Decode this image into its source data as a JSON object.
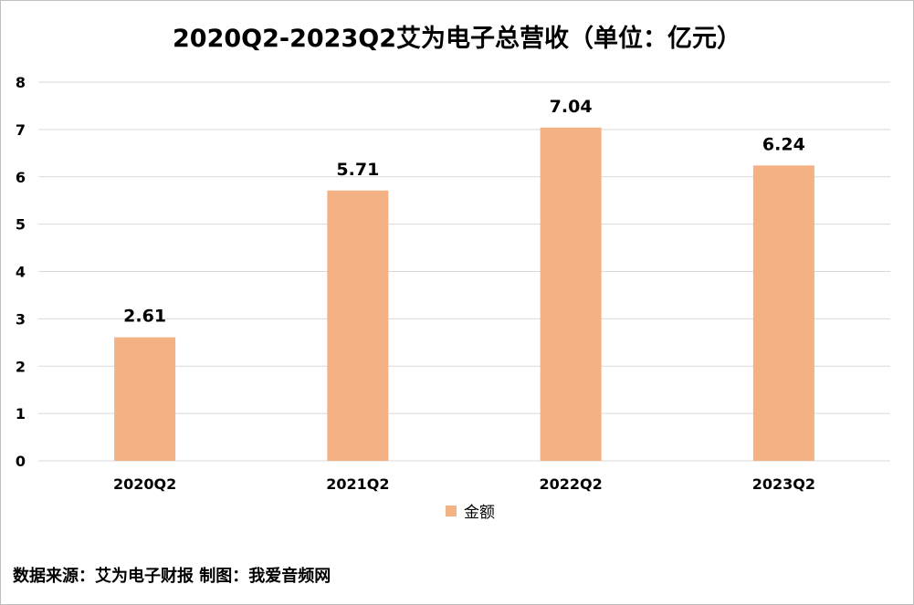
{
  "chart_data": {
    "type": "bar",
    "title": "2020Q2-2023Q2艾为电子总营收（单位：亿元）",
    "categories": [
      "2020Q2",
      "2021Q2",
      "2022Q2",
      "2023Q2"
    ],
    "series": [
      {
        "name": "金额",
        "values": [
          2.61,
          5.71,
          7.04,
          6.24
        ]
      }
    ],
    "ylim": [
      0,
      8
    ],
    "yticks": [
      0,
      1,
      2,
      3,
      4,
      5,
      6,
      7,
      8
    ],
    "grid": true,
    "legend": "bottom",
    "bar_color": "#f4b183",
    "grid_color": "#d9d9d9"
  },
  "footer": {
    "source": "数据来源：艾为电子财报 制图：我爱音频网"
  }
}
